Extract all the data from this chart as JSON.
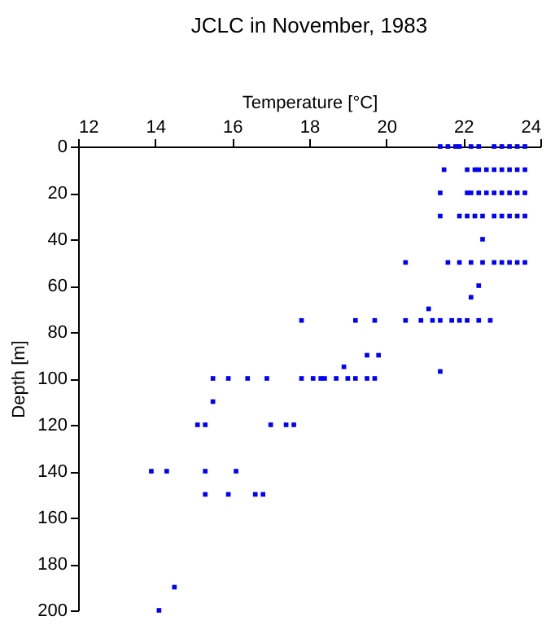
{
  "chart_data": {
    "type": "scatter",
    "title": "JCLC in November, 1983",
    "xlabel": "Temperature [°C]",
    "ylabel": "Depth [m]",
    "x": [
      21.4,
      21.6,
      21.8,
      21.9,
      22.2,
      22.4,
      22.8,
      23.0,
      23.2,
      23.4,
      23.6,
      21.5,
      22.1,
      22.3,
      22.4,
      22.6,
      22.8,
      23.0,
      23.2,
      23.4,
      23.6,
      21.4,
      22.1,
      22.2,
      22.4,
      22.6,
      22.8,
      23.0,
      23.2,
      23.4,
      23.6,
      21.4,
      21.9,
      22.1,
      22.3,
      22.5,
      22.8,
      23.0,
      23.2,
      23.4,
      23.6,
      22.5,
      20.5,
      21.6,
      21.9,
      22.2,
      22.5,
      22.8,
      23.0,
      23.2,
      23.4,
      23.6,
      22.4,
      22.2,
      21.1,
      17.8,
      19.2,
      19.7,
      20.5,
      20.9,
      21.2,
      21.4,
      21.7,
      21.9,
      22.1,
      22.4,
      22.7,
      19.5,
      19.8,
      18.9,
      21.4,
      15.5,
      15.9,
      16.4,
      16.9,
      17.8,
      18.1,
      18.3,
      18.4,
      18.7,
      19.0,
      19.2,
      19.5,
      19.7,
      15.5,
      15.1,
      15.3,
      17.0,
      17.4,
      17.6,
      13.9,
      14.3,
      15.3,
      16.1,
      15.3,
      15.9,
      16.6,
      16.8,
      14.5,
      14.1
    ],
    "values": [
      0,
      0,
      0,
      0,
      0,
      0,
      0,
      0,
      0,
      0,
      0,
      10,
      10,
      10,
      10,
      10,
      10,
      10,
      10,
      10,
      10,
      20,
      20,
      20,
      20,
      20,
      20,
      20,
      20,
      20,
      20,
      30,
      30,
      30,
      30,
      30,
      30,
      30,
      30,
      30,
      30,
      40,
      50,
      50,
      50,
      50,
      50,
      50,
      50,
      50,
      50,
      50,
      60,
      65,
      70,
      75,
      75,
      75,
      75,
      75,
      75,
      75,
      75,
      75,
      75,
      75,
      75,
      90,
      90,
      95,
      97,
      100,
      100,
      100,
      100,
      100,
      100,
      100,
      100,
      100,
      100,
      100,
      100,
      100,
      110,
      120,
      120,
      120,
      120,
      120,
      140,
      140,
      140,
      140,
      150,
      150,
      150,
      150,
      190,
      200
    ],
    "color": "#0000ff",
    "marker": "square",
    "grid": false,
    "xlim": [
      12,
      24
    ],
    "xticks": [
      12,
      14,
      16,
      18,
      20,
      22,
      24
    ],
    "ylim": [
      200,
      0
    ],
    "yticks": [
      0,
      20,
      40,
      60,
      80,
      100,
      120,
      140,
      160,
      180,
      200
    ]
  }
}
